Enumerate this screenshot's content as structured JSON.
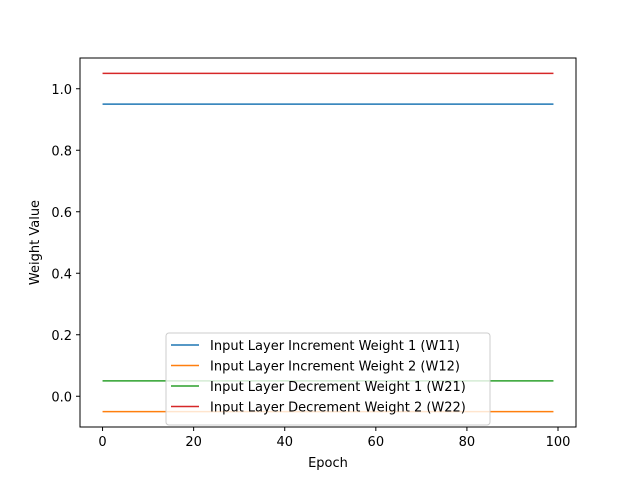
{
  "chart_data": {
    "type": "line",
    "title": "",
    "xlabel": "Epoch",
    "ylabel": "Weight Value",
    "xlim": [
      -4.95,
      103.95
    ],
    "ylim": [
      -0.1,
      1.1
    ],
    "xticks": [
      0,
      20,
      40,
      60,
      80,
      100
    ],
    "xtick_labels": [
      "0",
      "20",
      "40",
      "60",
      "80",
      "100"
    ],
    "yticks": [
      0.0,
      0.2,
      0.4,
      0.6,
      0.8,
      1.0
    ],
    "ytick_labels": [
      "0.0",
      "0.2",
      "0.4",
      "0.6",
      "0.8",
      "1.0"
    ],
    "grid": false,
    "legend_position": "bottom-center",
    "x": [
      0,
      99
    ],
    "series": [
      {
        "name": "Input Layer Increment Weight 1 (W11)",
        "color": "#1f77b4",
        "values": [
          0.95,
          0.95
        ]
      },
      {
        "name": "Input Layer Increment Weight 2 (W12)",
        "color": "#ff7f0e",
        "values": [
          -0.05,
          -0.05
        ]
      },
      {
        "name": "Input Layer Decrement Weight 1 (W21)",
        "color": "#2ca02c",
        "values": [
          0.05,
          0.05
        ]
      },
      {
        "name": "Input Layer Decrement Weight 2 (W22)",
        "color": "#d62728",
        "values": [
          1.05,
          1.05
        ]
      }
    ]
  }
}
